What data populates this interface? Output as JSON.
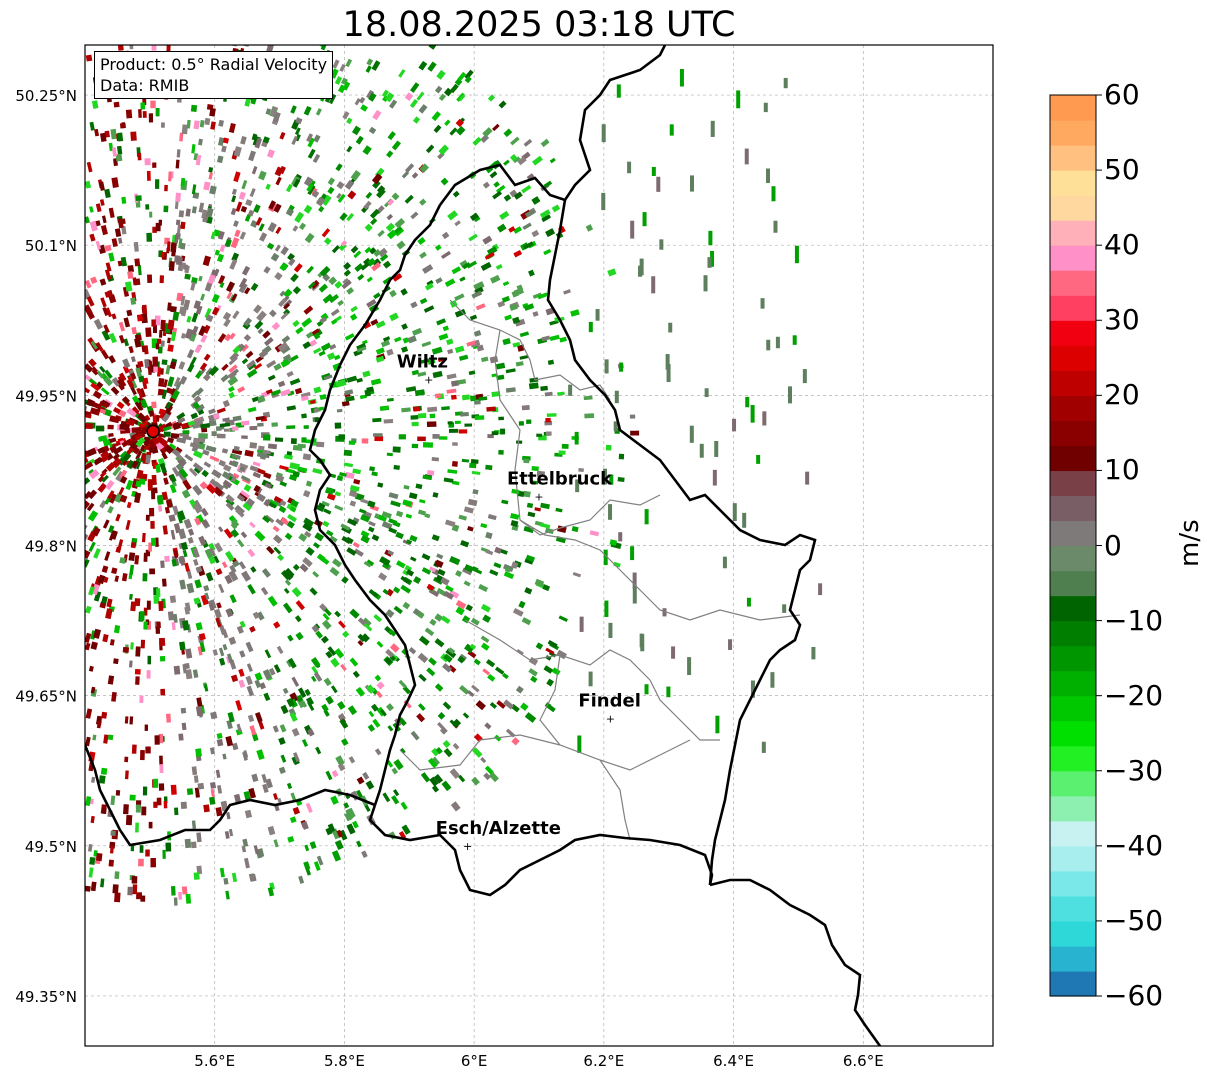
{
  "title": "18.08.2025 03:18 UTC",
  "info": {
    "product": "Product: 0.5° Radial Velocity",
    "data": "Data: RMIB"
  },
  "map": {
    "lat_ticks": [
      "50.25°N",
      "50.1°N",
      "49.95°N",
      "49.8°N",
      "49.65°N",
      "49.5°N",
      "49.35°N"
    ],
    "lon_ticks": [
      "5.6°E",
      "5.8°E",
      "6°E",
      "6.2°E",
      "6.4°E",
      "6.6°E"
    ],
    "extent": {
      "lon_min": 5.4,
      "lon_max": 6.8,
      "lat_min": 49.3,
      "lat_max": 50.3
    },
    "radar_site": {
      "lon": 5.505,
      "lat": 49.914,
      "color": "#e00000"
    },
    "cities": [
      {
        "name": "Wiltz",
        "lon": 5.93,
        "lat": 49.966
      },
      {
        "name": "Ettelbruck",
        "lon": 6.1,
        "lat": 49.849
      },
      {
        "name": "Findel",
        "lon": 6.21,
        "lat": 49.627
      },
      {
        "name": "Esch/Alzette",
        "lon": 5.99,
        "lat": 49.5
      }
    ]
  },
  "colorbar": {
    "label": "m/s",
    "ticks": [
      "60",
      "50",
      "40",
      "30",
      "20",
      "10",
      "0",
      "−10",
      "−20",
      "−30",
      "−40",
      "−50",
      "−60"
    ],
    "min": -60,
    "max": 60,
    "colors": [
      "#1f78b4",
      "#28b4d0",
      "#2fd8d8",
      "#4ee0e0",
      "#7ae8e8",
      "#a8eeee",
      "#c8f2f2",
      "#8ef0b0",
      "#5cf070",
      "#22f022",
      "#00e000",
      "#00c800",
      "#00b000",
      "#009600",
      "#007e00",
      "#006400",
      "#4f7f4f",
      "#6a8a6a",
      "#7f7a7a",
      "#7a5e66",
      "#7a4048",
      "#700000",
      "#8a0000",
      "#a00000",
      "#be0000",
      "#dc0000",
      "#f00010",
      "#ff4060",
      "#ff6880",
      "#ff90c8",
      "#ffb0b8",
      "#ffd8a0",
      "#ffe098",
      "#ffc080",
      "#ffa860",
      "#ff9a50"
    ]
  }
}
